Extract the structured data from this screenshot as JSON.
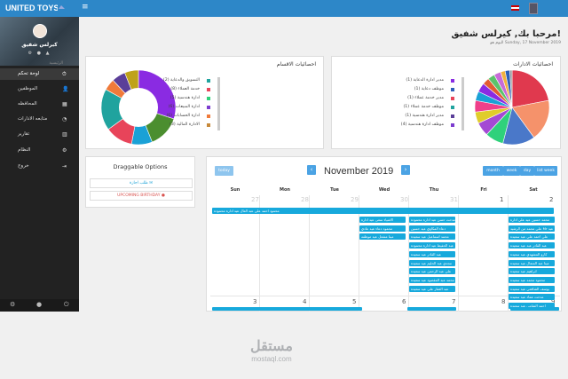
{
  "topbar": {
    "brand": "UNITED TOYS",
    "menu_icon": "menu-icon",
    "flag_icon": "thailand-flag-icon"
  },
  "sidebar": {
    "profile_name": "كيرلس شفيق",
    "section_label": "الرئيسية",
    "items": [
      {
        "label": "لوحة تحكم",
        "icon": "speedometer-icon",
        "glyph": "⏱"
      },
      {
        "label": "الموظفين",
        "icon": "user-add-icon",
        "glyph": "👤"
      },
      {
        "label": "المحافظه",
        "icon": "building-icon",
        "glyph": "▦"
      },
      {
        "label": "متابعه الادارات",
        "icon": "gauge-icon",
        "glyph": "◔"
      },
      {
        "label": "تقارير",
        "icon": "bar-chart-icon",
        "glyph": "▥"
      },
      {
        "label": "النظام",
        "icon": "settings-icon",
        "glyph": "⚙"
      },
      {
        "label": "خروج",
        "icon": "logout-icon",
        "glyph": "⇥"
      }
    ],
    "footer_icons": [
      "settings-icon",
      "user-icon",
      "power-icon"
    ]
  },
  "header": {
    "title": "مرحبا بك, كيرلس شفيق!",
    "date": "اليوم هو Sunday, 17 November 2019"
  },
  "sections_panel": {
    "title": "احصائيات الاقسام",
    "legend": [
      {
        "label": "التسويق والدعاية (2)",
        "color": "#20a39e"
      },
      {
        "label": "خدمة العملاء (8)",
        "color": "#e8445a"
      },
      {
        "label": "ادارة هندسية (5)",
        "color": "#2fd17b"
      },
      {
        "label": "ادارة المبيعات (6)",
        "color": "#7c3ccf"
      },
      {
        "label": "ادارة الحسابات (6)",
        "color": "#f07a3a"
      },
      {
        "label": "الادارة المالية (3)",
        "color": "#c7893a"
      }
    ],
    "chart_data": {
      "type": "pie",
      "values": [
        30,
        14,
        9,
        12,
        18,
        5,
        6,
        6
      ],
      "colors": [
        "#8a2be2",
        "#4b8e2f",
        "#1aa1d6",
        "#e8445a",
        "#20a39e",
        "#f07a3a",
        "#5b3f99",
        "#bfa21a"
      ]
    }
  },
  "departments_panel": {
    "title": "احصائيات الادارات",
    "legend": [
      {
        "label": "مدير ادارة الدعاية (1)",
        "color": "#8a2be2"
      },
      {
        "label": "موظف دعاية (1)",
        "color": "#2e5fb8"
      },
      {
        "label": "مدير خدمة عملاء (1)",
        "color": "#e8445a"
      },
      {
        "label": "موظف خدمة عملاء (1)",
        "color": "#20a39e"
      },
      {
        "label": "مدير ادارة هندسية (1)",
        "color": "#5b3f99"
      },
      {
        "label": "موظف ادارة هندسية (4)",
        "color": "#7c3ccf"
      }
    ],
    "chart_data": {
      "type": "pie",
      "values": [
        22,
        18,
        14,
        8,
        6,
        5,
        5,
        4,
        4,
        3,
        3,
        3,
        2,
        2,
        1
      ],
      "colors": [
        "#e0394e",
        "#f5926b",
        "#4a78c9",
        "#2fd17b",
        "#a44ad4",
        "#e0cc2a",
        "#ef3f8a",
        "#1aa1d6",
        "#8a2be2",
        "#e35c32",
        "#5cc26b",
        "#c86bd8",
        "#f2b13e",
        "#2e5fb8",
        "#999999"
      ]
    }
  },
  "draggable": {
    "title": "Draggable Options",
    "items": [
      "طلب اجازة",
      "UPCOMING BIRTHDAY"
    ]
  },
  "calendar": {
    "month_title": "November 2019",
    "today_label": "today",
    "prev_icon": "chevron-left-icon",
    "next_icon": "chevron-right-icon",
    "views": [
      "month",
      "week",
      "day",
      "list week"
    ],
    "weekdays": [
      "Sun",
      "Mon",
      "Tue",
      "Wed",
      "Thu",
      "Fri",
      "Sat"
    ],
    "week1_days": [
      "27",
      "28",
      "29",
      "30",
      "31",
      "1",
      "2"
    ],
    "week2_days": [
      "3",
      "4",
      "5",
      "6",
      "7",
      "8",
      "9"
    ],
    "banner_event": "محمود احمد علي عبد العال عيد ادارة محمودة",
    "wed_events": [
      "الاشياء سعى عيد ادارة",
      "محمود دعاء عيد عادي",
      "مينا مشعل عيد موظفه"
    ],
    "thu_events": [
      "مدحت حسن عيد ادارة محمودة",
      "دعاء المكاوي عيد حسين",
      "محمد اسماعيل عيد سعيدة",
      "عبد الحفيظ عيد ادارة محمودة",
      "عبد القادر عيد سعيدة",
      "مجدي عبد الحليم عيد سعيدة",
      "علي عبد الرحمن عيد سعيدة",
      "محمد عبد المقصود عيد سعيدة",
      "عبد الغفار علي عيد سعيدة"
    ],
    "sat_events": [
      "محمد حسين عيد علي ادارة",
      "علي محمد من الرشيد Mr عيد",
      "علي احمد علي عيد سعيدة",
      "عبد القادر عبد عيد سعيدة",
      "كارو المشهدي عيد سعيدة",
      "مينا عبد المتعال عيد سعيدة",
      "ابراهيم عيد سعيدة",
      "محمود محمد عيد سعيدة",
      "يوسف الشافعي عيد سعيدة",
      "مدحت عماد عيد سعيدة",
      "احمد الشامي عيد سعيدة"
    ]
  },
  "watermark": {
    "arabic": "مستقل",
    "latin": "mostaql.com"
  }
}
